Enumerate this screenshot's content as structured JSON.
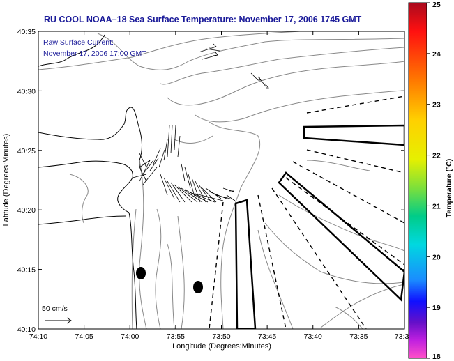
{
  "title": "RU COOL  NOAA–18  Sea Surface Temperature:  November 17, 2006 1745 GMT",
  "current_legend": {
    "line1": "Raw Surface Current:",
    "line2": "November 17, 2006 17:00 GMT"
  },
  "scale_arrow_label": "50 cm/s",
  "x_axis": {
    "label": "Longitude (Degrees:Minutes)",
    "ticks": [
      "74:10",
      "74:05",
      "74:00",
      "73:55",
      "73:50",
      "73:45",
      "73:40",
      "73:35",
      "73:3"
    ]
  },
  "y_axis": {
    "label": "Latitude (Degrees:Minutes)",
    "ticks": [
      "40:35",
      "40:30",
      "40:25",
      "40:20",
      "40:15",
      "40:10"
    ]
  },
  "colorbar": {
    "label": "Temperature (°C)",
    "ticks": [
      "25",
      "24",
      "23",
      "22",
      "21",
      "20",
      "19",
      "18"
    ],
    "colors": [
      "#aa0a1e",
      "#ff1010",
      "#ff7a00",
      "#ffd000",
      "#e6f000",
      "#7ee03a",
      "#00cc88",
      "#00d8e0",
      "#1a8cff",
      "#1010ff",
      "#6610c8",
      "#c020e0",
      "#ff50c8"
    ]
  }
}
